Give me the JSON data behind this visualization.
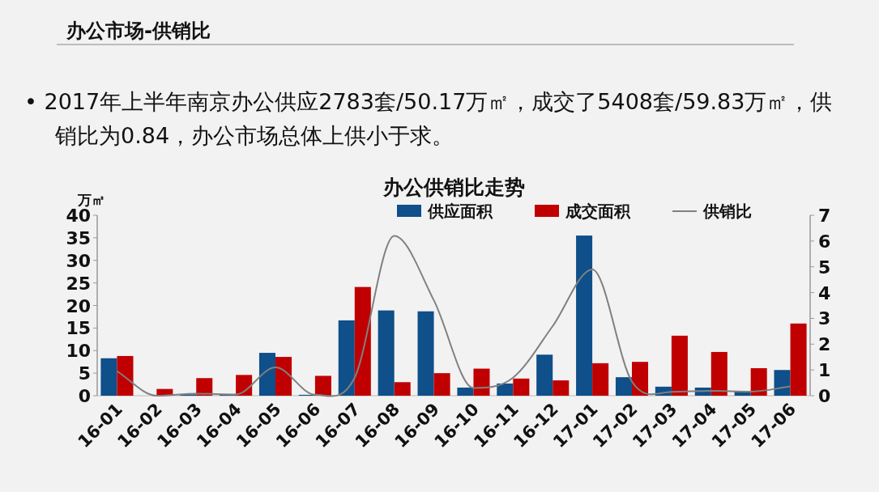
{
  "chart_data": {
    "type": "bar",
    "title": "办公供销比走势",
    "ylabel": "万㎡",
    "annotations": [
      "办公市场-供销比",
      "•  2017年上半年南京办公供应2783套/50.17万㎡，成交了5408套/59.83万㎡，供销比为0.84，办公市场总体上供小于求。"
    ],
    "categories": [
      "16-01",
      "16-02",
      "16-03",
      "16-04",
      "16-05",
      "16-06",
      "16-07",
      "16-08",
      "16-09",
      "16-10",
      "16-11",
      "16-12",
      "17-01",
      "17-02",
      "17-03",
      "17-04",
      "17-05",
      "17-06"
    ],
    "series": [
      {
        "name": "供应面积",
        "color": "#0f4f8a",
        "values": [
          8.3,
          0,
          0.3,
          0.2,
          9.5,
          0.2,
          16.7,
          18.9,
          18.7,
          1.8,
          2.7,
          9.1,
          35.5,
          4.1,
          2.0,
          1.8,
          1.0,
          5.7
        ]
      },
      {
        "name": "成交面积",
        "color": "#c00000",
        "values": [
          8.8,
          1.5,
          3.9,
          4.6,
          8.6,
          4.4,
          24.1,
          3.0,
          5.0,
          6.0,
          3.8,
          3.4,
          7.2,
          7.5,
          13.3,
          9.7,
          6.1,
          16.0
        ]
      },
      {
        "name": "供销比",
        "color": "#808080",
        "type": "line",
        "axis": "y2",
        "values": [
          0.95,
          0,
          0.08,
          0.05,
          1.1,
          0.04,
          0.7,
          6.2,
          3.7,
          0.3,
          0.7,
          2.7,
          4.9,
          0.55,
          0.15,
          0.19,
          0.16,
          0.36
        ]
      }
    ],
    "ylim": [
      0,
      40
    ],
    "yticks": [
      0,
      5,
      10,
      15,
      20,
      25,
      30,
      35,
      40
    ],
    "y2lim": [
      0,
      7
    ],
    "y2ticks": [
      0,
      1,
      2,
      3,
      4,
      5,
      6,
      7
    ],
    "legend": "top",
    "grid": false,
    "marker": "none",
    "line_style": "solid"
  }
}
